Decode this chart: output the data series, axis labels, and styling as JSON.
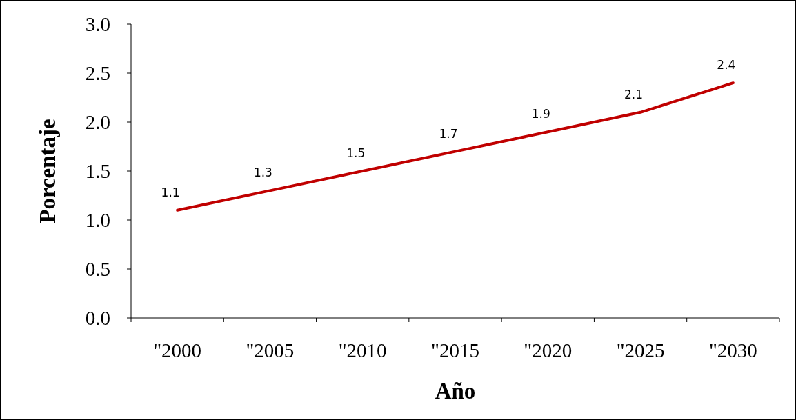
{
  "chart_data": {
    "type": "line",
    "xlabel": "Año",
    "ylabel": "Porcentaje",
    "categories": [
      "\"2000",
      "\"2005",
      "\"2010",
      "\"2015",
      "\"2020",
      "\"2025",
      "\"2030"
    ],
    "series": [
      {
        "color": "#c00000",
        "values": [
          1.1,
          1.3,
          1.5,
          1.7,
          1.9,
          2.1,
          2.4
        ]
      }
    ],
    "ylim": [
      0,
      3
    ],
    "yticks": [
      {
        "value": 0,
        "label": "0.0"
      },
      {
        "value": 0.5,
        "label": "0.5"
      },
      {
        "value": 1,
        "label": "1.0"
      },
      {
        "value": 1.5,
        "label": "1.5"
      },
      {
        "value": 2,
        "label": "2.0"
      },
      {
        "value": 2.5,
        "label": "2.5"
      },
      {
        "value": 3,
        "label": "3.0"
      }
    ],
    "data_labels": true,
    "grid": false,
    "marker": "none",
    "line_style": "solid"
  }
}
